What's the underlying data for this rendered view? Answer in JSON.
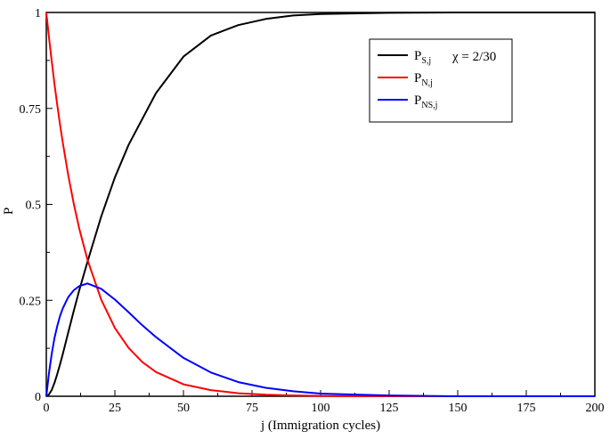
{
  "chart_data": {
    "type": "line",
    "xlabel": "j (Immigration cycles)",
    "ylabel": "P",
    "xlim": [
      0,
      200
    ],
    "ylim": [
      0,
      1
    ],
    "xticks": [
      "0",
      "25",
      "50",
      "75",
      "100",
      "125",
      "150",
      "175",
      "200"
    ],
    "yticks": [
      "0",
      "0.25",
      "0.5",
      "0.75",
      "1"
    ],
    "grid": false,
    "legend_position": "top-right",
    "legend_annotation": "χ = 2/30",
    "series": [
      {
        "name": "P_{S,j}",
        "label_main": "P",
        "label_sub": "S,j",
        "color": "#000000",
        "x": [
          0,
          1,
          2,
          3,
          4,
          5,
          6,
          8,
          10,
          12,
          15,
          20,
          25,
          30,
          40,
          50,
          60,
          70,
          80,
          90,
          100,
          125,
          150,
          175,
          200
        ],
        "y": [
          0,
          0.005,
          0.017,
          0.035,
          0.058,
          0.083,
          0.11,
          0.166,
          0.222,
          0.276,
          0.35,
          0.468,
          0.57,
          0.655,
          0.79,
          0.885,
          0.94,
          0.967,
          0.983,
          0.992,
          0.996,
          0.999,
          1.0,
          1.0,
          1.0
        ]
      },
      {
        "name": "P_{N,j}",
        "label_main": "P",
        "label_sub": "N,j",
        "color": "#ff0000",
        "x": [
          0,
          1,
          2,
          3,
          4,
          5,
          6,
          8,
          10,
          12,
          15,
          20,
          25,
          30,
          35,
          40,
          50,
          60,
          70,
          80,
          90,
          100,
          125,
          150,
          175,
          200
        ],
        "y": [
          1.0,
          0.933,
          0.871,
          0.813,
          0.759,
          0.708,
          0.661,
          0.576,
          0.502,
          0.437,
          0.356,
          0.252,
          0.178,
          0.126,
          0.089,
          0.063,
          0.031,
          0.016,
          0.008,
          0.004,
          0.002,
          0.001,
          0.0,
          0.0,
          0.0,
          0.0
        ]
      },
      {
        "name": "P_{NS,j}",
        "label_main": "P",
        "label_sub": "NS,j",
        "color": "#0000ff",
        "x": [
          0,
          1,
          2,
          3,
          4,
          5,
          6,
          7,
          8,
          10,
          12,
          15,
          20,
          25,
          30,
          35,
          40,
          50,
          60,
          70,
          80,
          90,
          100,
          125,
          150,
          175,
          200
        ],
        "y": [
          0,
          0.062,
          0.112,
          0.152,
          0.183,
          0.209,
          0.229,
          0.244,
          0.258,
          0.276,
          0.287,
          0.294,
          0.28,
          0.252,
          0.219,
          0.185,
          0.154,
          0.1,
          0.062,
          0.037,
          0.022,
          0.013,
          0.007,
          0.002,
          0.0,
          0.0,
          0.0
        ]
      }
    ]
  }
}
